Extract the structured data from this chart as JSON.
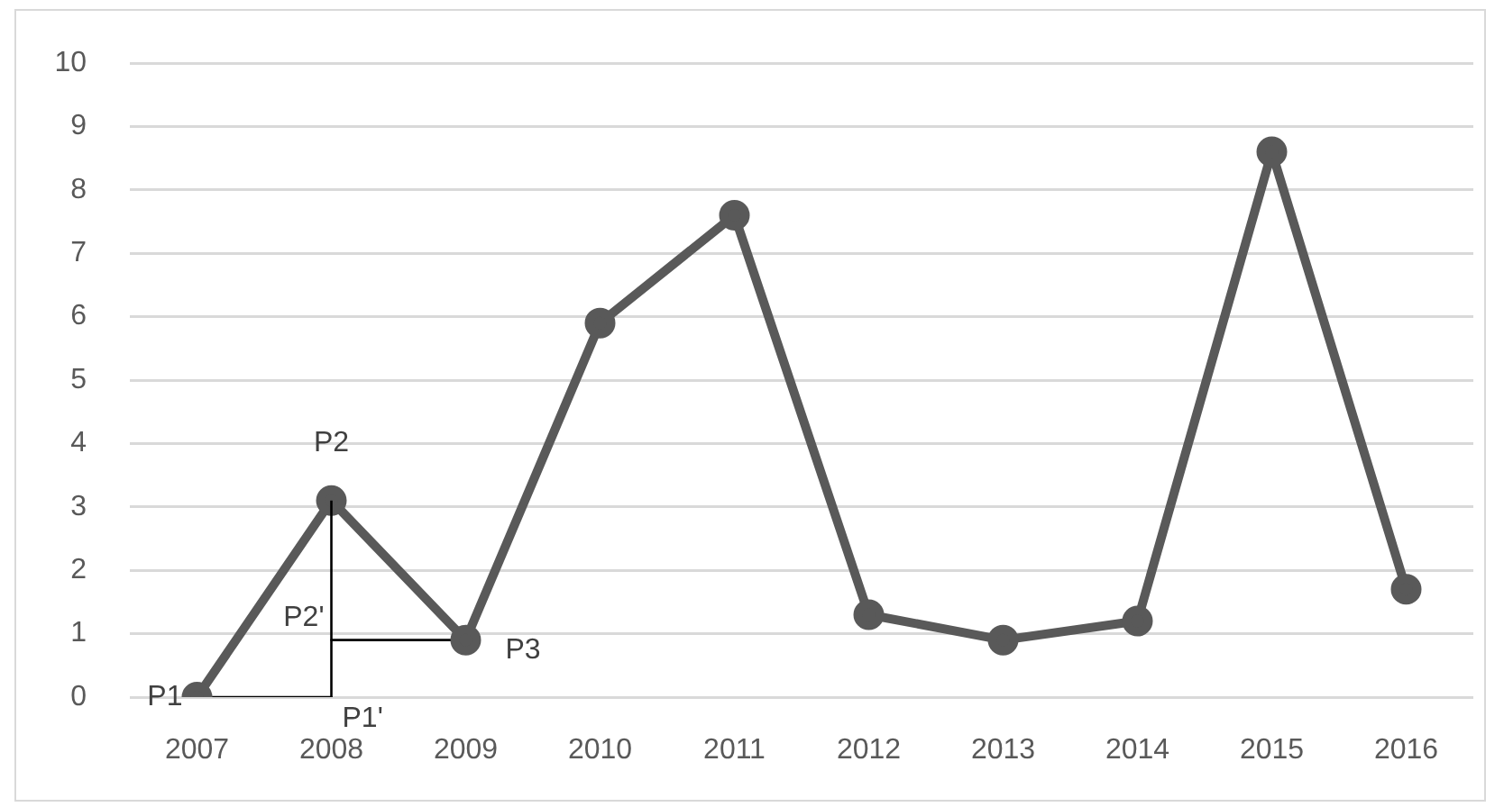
{
  "chart_data": {
    "type": "line",
    "categories": [
      "2007",
      "2008",
      "2009",
      "2010",
      "2011",
      "2012",
      "2013",
      "2014",
      "2015",
      "2016"
    ],
    "series": [
      {
        "color": "#595959",
        "values": [
          0,
          3.1,
          0.9,
          5.9,
          7.6,
          1.3,
          0.9,
          1.2,
          8.6,
          1.7
        ]
      },
      {
        "color": "#000000",
        "marker": "none",
        "values": [
          0,
          0,
          null,
          null,
          null,
          null,
          null,
          null,
          null,
          null
        ]
      },
      {
        "color": "#000000",
        "marker": "none",
        "values": [
          null,
          0.9,
          0.9,
          null,
          null,
          null,
          null,
          null,
          null,
          null
        ]
      }
    ],
    "ylim": [
      0,
      10
    ],
    "yticks": [
      0,
      1,
      2,
      3,
      4,
      5,
      6,
      7,
      8,
      9,
      10
    ],
    "grid": "y",
    "legend": false,
    "marker": "circle",
    "line_style": "solid",
    "annotations": [
      {
        "text": "P1",
        "x": "2007",
        "y": 0
      },
      {
        "text": "P2",
        "x": "2008",
        "y": 3.1
      },
      {
        "text": "P3",
        "x": "2009",
        "y": 0.9
      },
      {
        "text": "P2'",
        "x": "2008",
        "y": 0.9
      },
      {
        "text": "P1'",
        "x": "2008",
        "y": 0
      }
    ]
  }
}
